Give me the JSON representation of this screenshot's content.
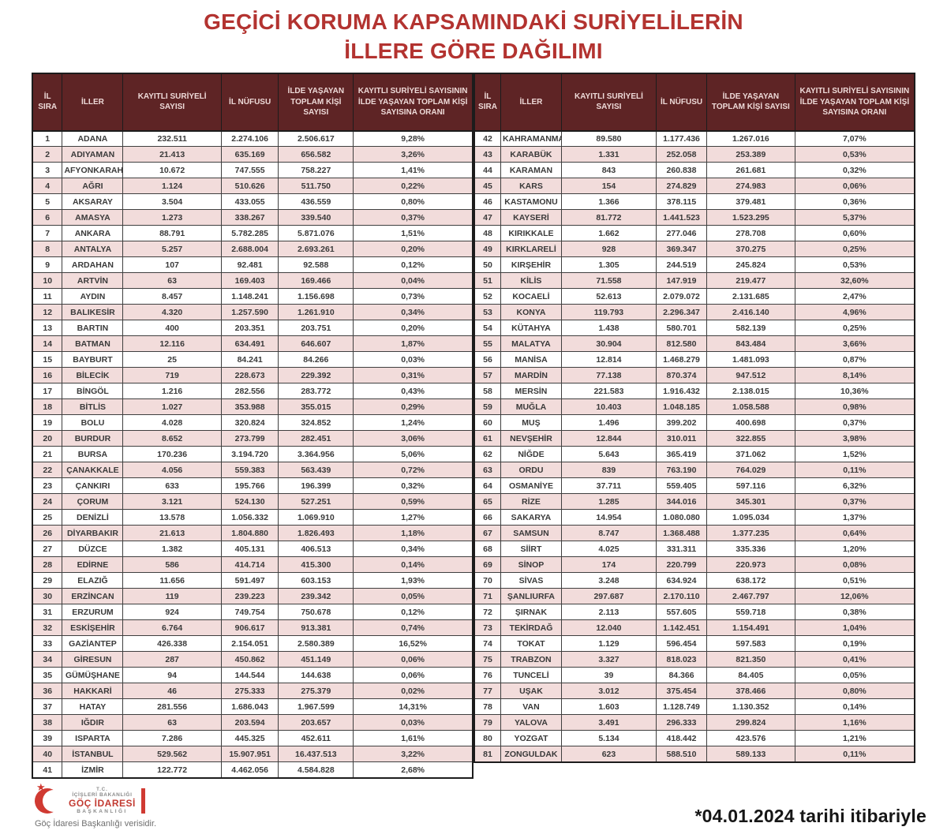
{
  "title": {
    "line1": "GEÇİCİ KORUMA KAPSAMINDAKİ SURİYELİLERİN",
    "line2": "İLLERE GÖRE DAĞILIMI"
  },
  "table": {
    "headers": {
      "order": "İL SIRA",
      "provinces": "İLLER",
      "registered": "KAYITLI SURİYELİ SAYISI",
      "population": "İL NÜFUSU",
      "total": "İLDE YAŞAYAN TOPLAM KİŞİ SAYISI",
      "ratio": "KAYITLI SURİYELİ SAYISININ İLDE YAŞAYAN TOPLAM KİŞİ SAYISINA ORANI"
    },
    "left_rows": [
      [
        "1",
        "ADANA",
        "232.511",
        "2.274.106",
        "2.506.617",
        "9,28%"
      ],
      [
        "2",
        "ADIYAMAN",
        "21.413",
        "635.169",
        "656.582",
        "3,26%"
      ],
      [
        "3",
        "AFYONKARAHİSAR",
        "10.672",
        "747.555",
        "758.227",
        "1,41%"
      ],
      [
        "4",
        "AĞRI",
        "1.124",
        "510.626",
        "511.750",
        "0,22%"
      ],
      [
        "5",
        "AKSARAY",
        "3.504",
        "433.055",
        "436.559",
        "0,80%"
      ],
      [
        "6",
        "AMASYA",
        "1.273",
        "338.267",
        "339.540",
        "0,37%"
      ],
      [
        "7",
        "ANKARA",
        "88.791",
        "5.782.285",
        "5.871.076",
        "1,51%"
      ],
      [
        "8",
        "ANTALYA",
        "5.257",
        "2.688.004",
        "2.693.261",
        "0,20%"
      ],
      [
        "9",
        "ARDAHAN",
        "107",
        "92.481",
        "92.588",
        "0,12%"
      ],
      [
        "10",
        "ARTVİN",
        "63",
        "169.403",
        "169.466",
        "0,04%"
      ],
      [
        "11",
        "AYDIN",
        "8.457",
        "1.148.241",
        "1.156.698",
        "0,73%"
      ],
      [
        "12",
        "BALIKESİR",
        "4.320",
        "1.257.590",
        "1.261.910",
        "0,34%"
      ],
      [
        "13",
        "BARTIN",
        "400",
        "203.351",
        "203.751",
        "0,20%"
      ],
      [
        "14",
        "BATMAN",
        "12.116",
        "634.491",
        "646.607",
        "1,87%"
      ],
      [
        "15",
        "BAYBURT",
        "25",
        "84.241",
        "84.266",
        "0,03%"
      ],
      [
        "16",
        "BİLECİK",
        "719",
        "228.673",
        "229.392",
        "0,31%"
      ],
      [
        "17",
        "BİNGÖL",
        "1.216",
        "282.556",
        "283.772",
        "0,43%"
      ],
      [
        "18",
        "BİTLİS",
        "1.027",
        "353.988",
        "355.015",
        "0,29%"
      ],
      [
        "19",
        "BOLU",
        "4.028",
        "320.824",
        "324.852",
        "1,24%"
      ],
      [
        "20",
        "BURDUR",
        "8.652",
        "273.799",
        "282.451",
        "3,06%"
      ],
      [
        "21",
        "BURSA",
        "170.236",
        "3.194.720",
        "3.364.956",
        "5,06%"
      ],
      [
        "22",
        "ÇANAKKALE",
        "4.056",
        "559.383",
        "563.439",
        "0,72%"
      ],
      [
        "23",
        "ÇANKIRI",
        "633",
        "195.766",
        "196.399",
        "0,32%"
      ],
      [
        "24",
        "ÇORUM",
        "3.121",
        "524.130",
        "527.251",
        "0,59%"
      ],
      [
        "25",
        "DENİZLİ",
        "13.578",
        "1.056.332",
        "1.069.910",
        "1,27%"
      ],
      [
        "26",
        "DİYARBAKIR",
        "21.613",
        "1.804.880",
        "1.826.493",
        "1,18%"
      ],
      [
        "27",
        "DÜZCE",
        "1.382",
        "405.131",
        "406.513",
        "0,34%"
      ],
      [
        "28",
        "EDİRNE",
        "586",
        "414.714",
        "415.300",
        "0,14%"
      ],
      [
        "29",
        "ELAZIĞ",
        "11.656",
        "591.497",
        "603.153",
        "1,93%"
      ],
      [
        "30",
        "ERZİNCAN",
        "119",
        "239.223",
        "239.342",
        "0,05%"
      ],
      [
        "31",
        "ERZURUM",
        "924",
        "749.754",
        "750.678",
        "0,12%"
      ],
      [
        "32",
        "ESKİŞEHİR",
        "6.764",
        "906.617",
        "913.381",
        "0,74%"
      ],
      [
        "33",
        "GAZİANTEP",
        "426.338",
        "2.154.051",
        "2.580.389",
        "16,52%"
      ],
      [
        "34",
        "GİRESUN",
        "287",
        "450.862",
        "451.149",
        "0,06%"
      ],
      [
        "35",
        "GÜMÜŞHANE",
        "94",
        "144.544",
        "144.638",
        "0,06%"
      ],
      [
        "36",
        "HAKKARİ",
        "46",
        "275.333",
        "275.379",
        "0,02%"
      ],
      [
        "37",
        "HATAY",
        "281.556",
        "1.686.043",
        "1.967.599",
        "14,31%"
      ],
      [
        "38",
        "IĞDIR",
        "63",
        "203.594",
        "203.657",
        "0,03%"
      ],
      [
        "39",
        "ISPARTA",
        "7.286",
        "445.325",
        "452.611",
        "1,61%"
      ],
      [
        "40",
        "İSTANBUL",
        "529.562",
        "15.907.951",
        "16.437.513",
        "3,22%"
      ],
      [
        "41",
        "İZMİR",
        "122.772",
        "4.462.056",
        "4.584.828",
        "2,68%"
      ]
    ],
    "right_rows": [
      [
        "42",
        "KAHRAMANMARAŞ",
        "89.580",
        "1.177.436",
        "1.267.016",
        "7,07%"
      ],
      [
        "43",
        "KARABÜK",
        "1.331",
        "252.058",
        "253.389",
        "0,53%"
      ],
      [
        "44",
        "KARAMAN",
        "843",
        "260.838",
        "261.681",
        "0,32%"
      ],
      [
        "45",
        "KARS",
        "154",
        "274.829",
        "274.983",
        "0,06%"
      ],
      [
        "46",
        "KASTAMONU",
        "1.366",
        "378.115",
        "379.481",
        "0,36%"
      ],
      [
        "47",
        "KAYSERİ",
        "81.772",
        "1.441.523",
        "1.523.295",
        "5,37%"
      ],
      [
        "48",
        "KIRIKKALE",
        "1.662",
        "277.046",
        "278.708",
        "0,60%"
      ],
      [
        "49",
        "KIRKLARELİ",
        "928",
        "369.347",
        "370.275",
        "0,25%"
      ],
      [
        "50",
        "KIRŞEHİR",
        "1.305",
        "244.519",
        "245.824",
        "0,53%"
      ],
      [
        "51",
        "KİLİS",
        "71.558",
        "147.919",
        "219.477",
        "32,60%"
      ],
      [
        "52",
        "KOCAELİ",
        "52.613",
        "2.079.072",
        "2.131.685",
        "2,47%"
      ],
      [
        "53",
        "KONYA",
        "119.793",
        "2.296.347",
        "2.416.140",
        "4,96%"
      ],
      [
        "54",
        "KÜTAHYA",
        "1.438",
        "580.701",
        "582.139",
        "0,25%"
      ],
      [
        "55",
        "MALATYA",
        "30.904",
        "812.580",
        "843.484",
        "3,66%"
      ],
      [
        "56",
        "MANİSA",
        "12.814",
        "1.468.279",
        "1.481.093",
        "0,87%"
      ],
      [
        "57",
        "MARDİN",
        "77.138",
        "870.374",
        "947.512",
        "8,14%"
      ],
      [
        "58",
        "MERSİN",
        "221.583",
        "1.916.432",
        "2.138.015",
        "10,36%"
      ],
      [
        "59",
        "MUĞLA",
        "10.403",
        "1.048.185",
        "1.058.588",
        "0,98%"
      ],
      [
        "60",
        "MUŞ",
        "1.496",
        "399.202",
        "400.698",
        "0,37%"
      ],
      [
        "61",
        "NEVŞEHİR",
        "12.844",
        "310.011",
        "322.855",
        "3,98%"
      ],
      [
        "62",
        "NİĞDE",
        "5.643",
        "365.419",
        "371.062",
        "1,52%"
      ],
      [
        "63",
        "ORDU",
        "839",
        "763.190",
        "764.029",
        "0,11%"
      ],
      [
        "64",
        "OSMANİYE",
        "37.711",
        "559.405",
        "597.116",
        "6,32%"
      ],
      [
        "65",
        "RİZE",
        "1.285",
        "344.016",
        "345.301",
        "0,37%"
      ],
      [
        "66",
        "SAKARYA",
        "14.954",
        "1.080.080",
        "1.095.034",
        "1,37%"
      ],
      [
        "67",
        "SAMSUN",
        "8.747",
        "1.368.488",
        "1.377.235",
        "0,64%"
      ],
      [
        "68",
        "SİİRT",
        "4.025",
        "331.311",
        "335.336",
        "1,20%"
      ],
      [
        "69",
        "SİNOP",
        "174",
        "220.799",
        "220.973",
        "0,08%"
      ],
      [
        "70",
        "SİVAS",
        "3.248",
        "634.924",
        "638.172",
        "0,51%"
      ],
      [
        "71",
        "ŞANLIURFA",
        "297.687",
        "2.170.110",
        "2.467.797",
        "12,06%"
      ],
      [
        "72",
        "ŞIRNAK",
        "2.113",
        "557.605",
        "559.718",
        "0,38%"
      ],
      [
        "73",
        "TEKİRDAĞ",
        "12.040",
        "1.142.451",
        "1.154.491",
        "1,04%"
      ],
      [
        "74",
        "TOKAT",
        "1.129",
        "596.454",
        "597.583",
        "0,19%"
      ],
      [
        "75",
        "TRABZON",
        "3.327",
        "818.023",
        "821.350",
        "0,41%"
      ],
      [
        "76",
        "TUNCELİ",
        "39",
        "84.366",
        "84.405",
        "0,05%"
      ],
      [
        "77",
        "UŞAK",
        "3.012",
        "375.454",
        "378.466",
        "0,80%"
      ],
      [
        "78",
        "VAN",
        "1.603",
        "1.128.749",
        "1.130.352",
        "0,14%"
      ],
      [
        "79",
        "YALOVA",
        "3.491",
        "296.333",
        "299.824",
        "1,16%"
      ],
      [
        "80",
        "YOZGAT",
        "5.134",
        "418.442",
        "423.576",
        "1,21%"
      ],
      [
        "81",
        "ZONGULDAK",
        "623",
        "588.510",
        "589.133",
        "0,11%"
      ]
    ]
  },
  "footer": {
    "logo": {
      "line1": "T.C.",
      "line2": "İÇİŞLERİ BAKANLIĞI",
      "line3": "GÖÇ İDARESİ",
      "line4": "BAŞKANLIĞI",
      "caption": "Göç İdaresi Başkanlığı verisidir."
    },
    "note": "*04.01.2024 tarihi itibariyle"
  },
  "colors": {
    "title_red": "#b33330",
    "header_bg": "#5e2425",
    "header_text": "#eedad8",
    "row_alt_pink": "#f2dcdb",
    "logo_red": "#d03a32"
  }
}
